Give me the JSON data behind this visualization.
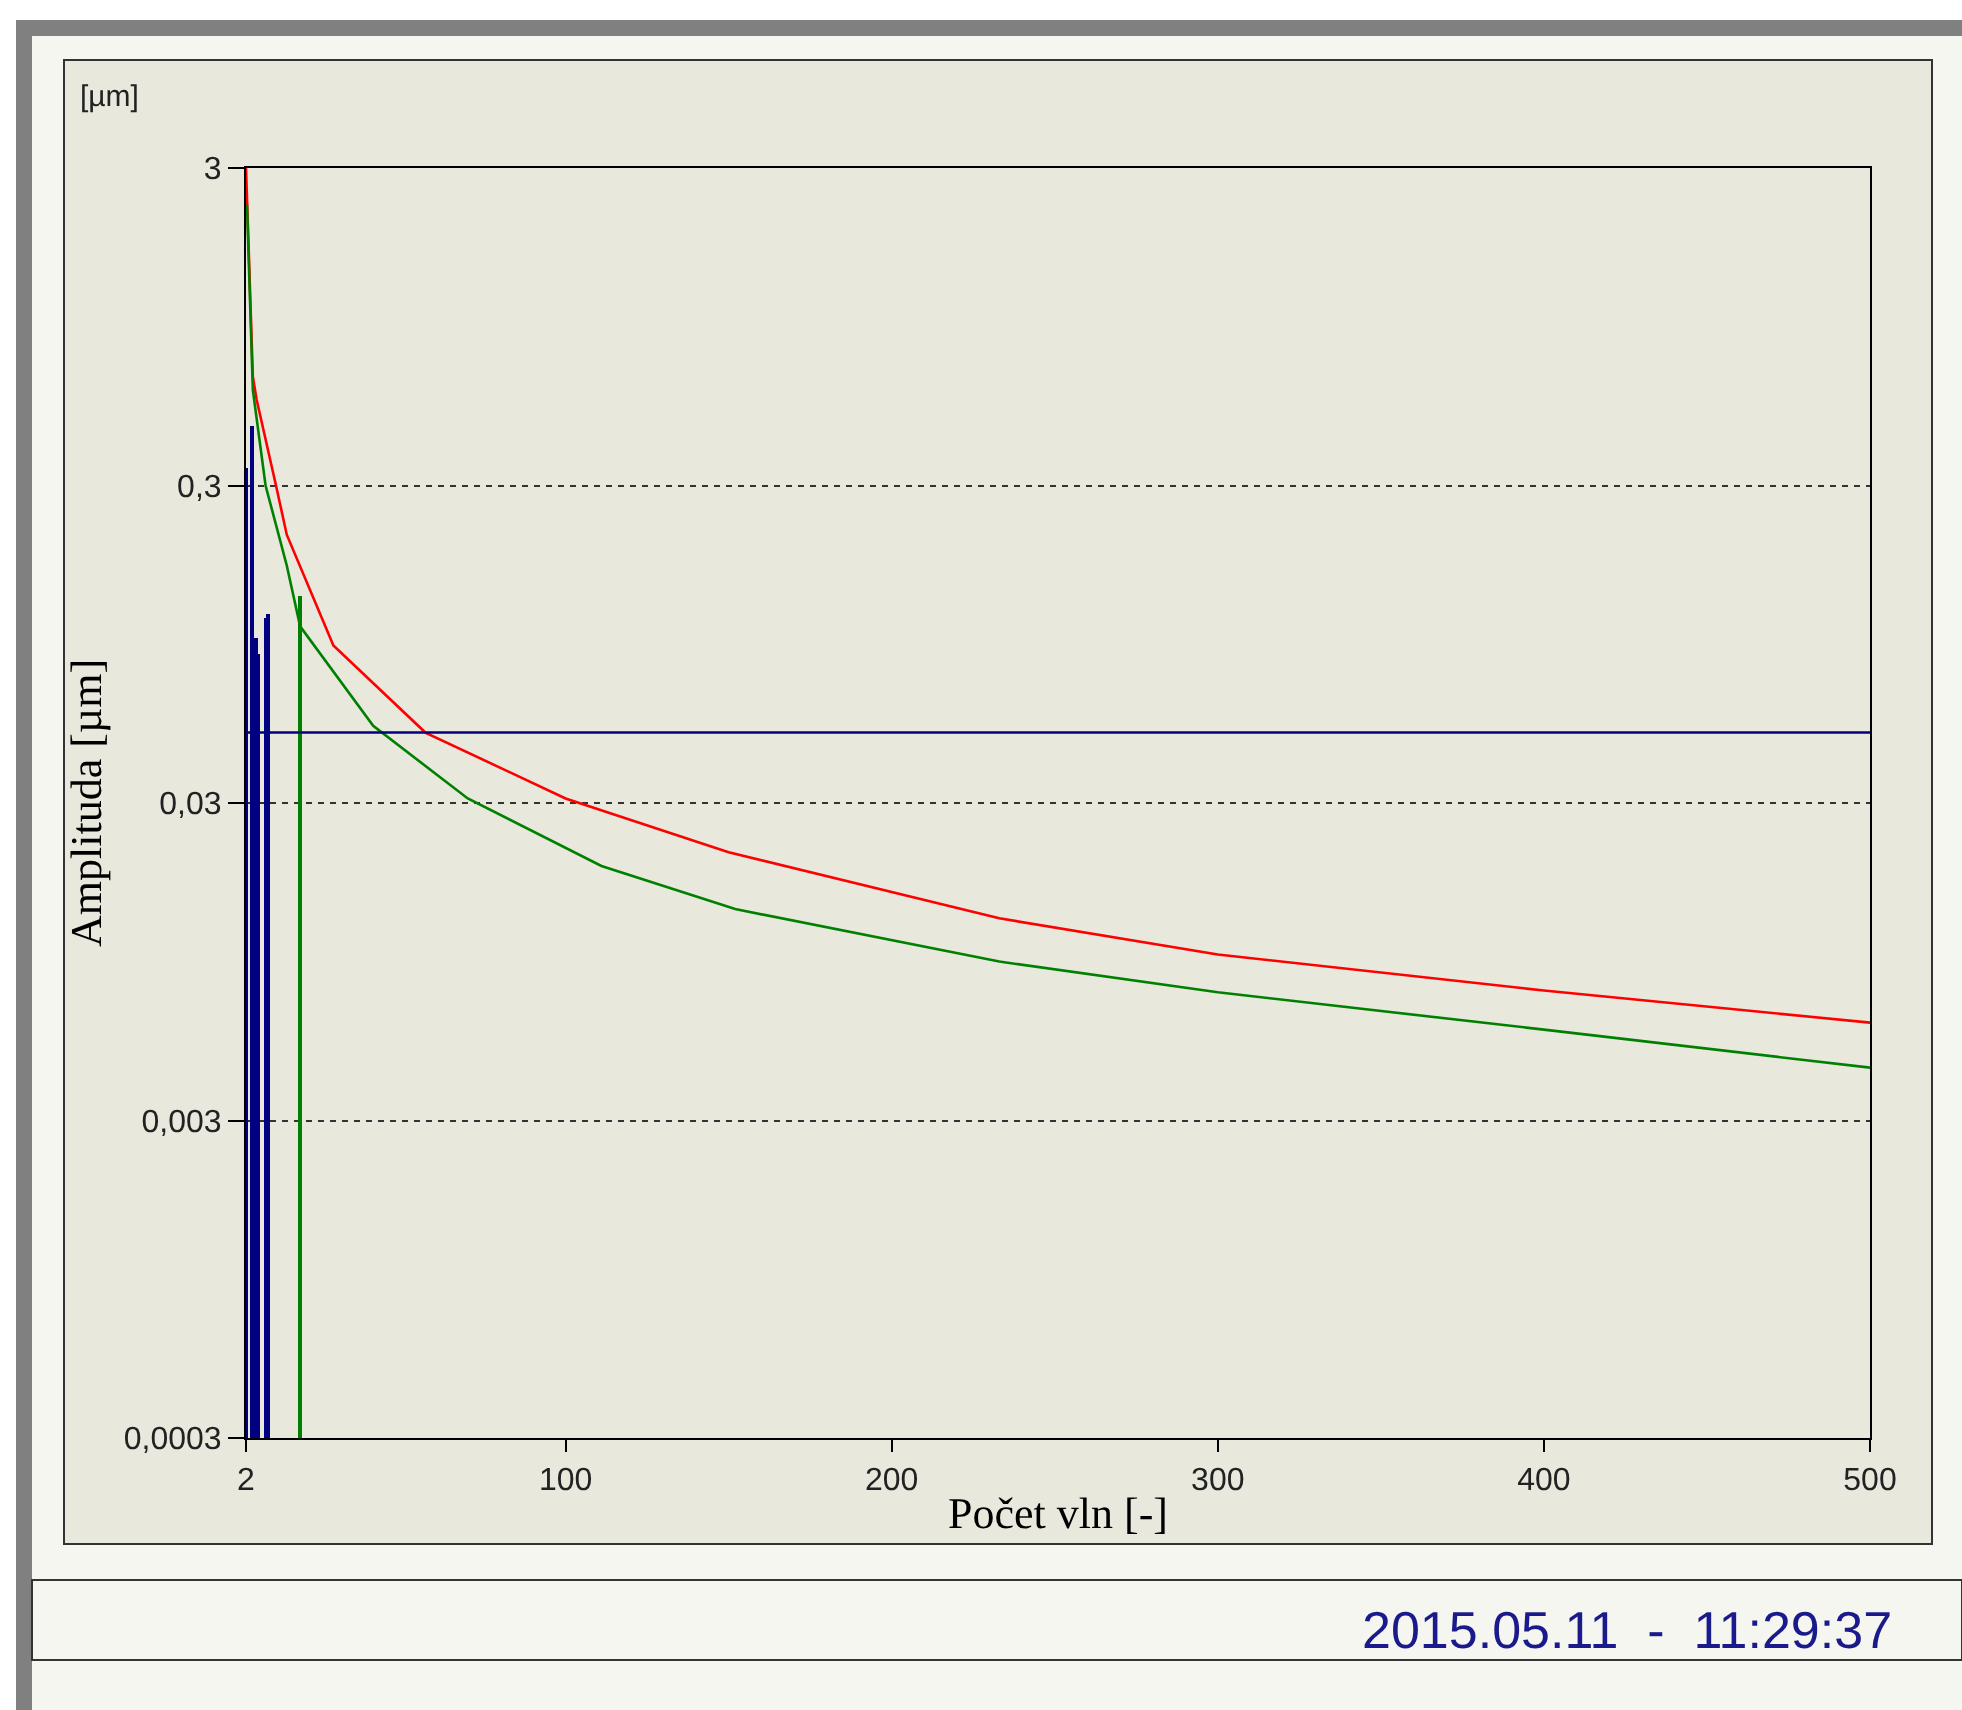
{
  "chart_data": {
    "type": "line",
    "xlabel": "Počet vln [-]",
    "ylabel": "Amplituda [µm]",
    "annotations": [
      "[µm]",
      "2015.05.11  -  11:29:37"
    ],
    "log": "y",
    "grid": "y",
    "marker": "none",
    "line_style": "solid",
    "xlim": [
      2,
      500
    ],
    "xticks": [
      2,
      100,
      200,
      300,
      400,
      500
    ],
    "ylim": [
      0.0003,
      3
    ],
    "yticks": [
      3,
      {
        "value": 0.3,
        "label": "0,3"
      },
      {
        "value": 0.03,
        "label": "0,03"
      },
      {
        "value": 0.003,
        "label": "0,003"
      },
      {
        "value": 0.0003,
        "label": "0,0003"
      }
    ],
    "series": [
      {
        "color": "#ff0000",
        "x": [
          2,
          2.8,
          4.1,
          5.25,
          11.2,
          14.5,
          28.8,
          57,
          100,
          150,
          233,
          300,
          400,
          500
        ],
        "values": [
          3,
          1.7,
          0.66,
          0.56,
          0.3,
          0.21,
          0.094,
          0.05,
          0.031,
          0.021,
          0.013,
          0.01,
          0.0077,
          0.0061
        ]
      },
      {
        "color": "#008000",
        "x": [
          2.3,
          4.1,
          8,
          14.5,
          18.6,
          41,
          70,
          111,
          152,
          233,
          300,
          400,
          500
        ],
        "values": [
          2.3,
          0.6,
          0.3,
          0.168,
          0.108,
          0.0525,
          0.031,
          0.019,
          0.0139,
          0.0095,
          0.0076,
          0.0058,
          0.0044
        ]
      },
      {
        "type": "bar",
        "color": "#000080",
        "x": [
          2,
          4,
          5,
          6,
          8,
          9
        ],
        "values": [
          0.34,
          0.46,
          0.099,
          0.088,
          0.114,
          0.119
        ]
      },
      {
        "type": "bar",
        "color": "#008000",
        "x": [
          18.6
        ],
        "values": [
          0.135
        ]
      }
    ],
    "ref_lines": [
      {
        "axis": "y",
        "value": 0.05,
        "color": "#000080",
        "line_style": "solid"
      }
    ]
  }
}
